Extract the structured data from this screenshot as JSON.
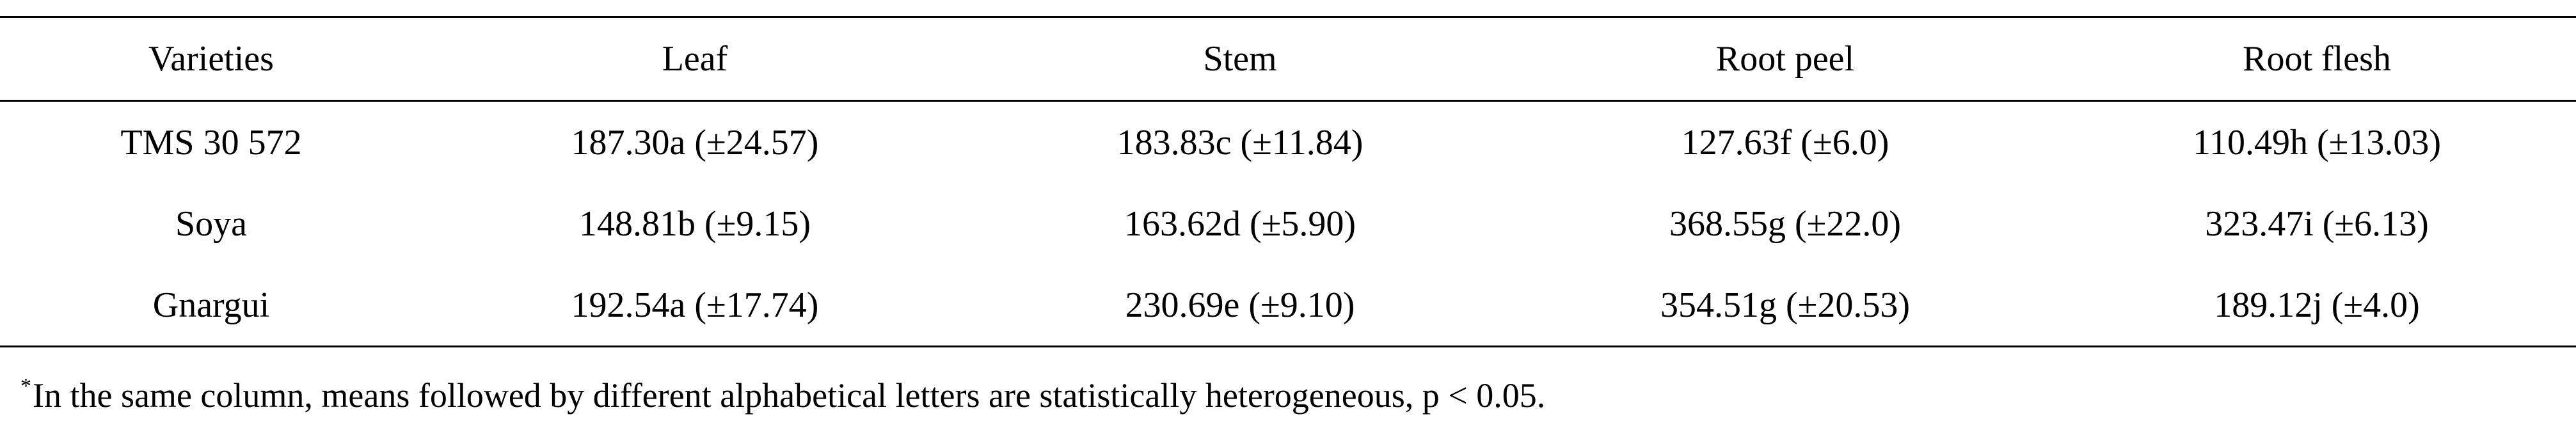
{
  "table": {
    "headers": [
      "Varieties",
      "Leaf",
      "Stem",
      "Root peel",
      "Root flesh"
    ],
    "rows": [
      [
        "TMS 30 572",
        "187.30a (±24.57)",
        "183.83c (±11.84)",
        "127.63f (±6.0)",
        "110.49h (±13.03)"
      ],
      [
        "Soya",
        "148.81b (±9.15)",
        "163.62d (±5.90)",
        "368.55g (±22.0)",
        "323.47i (±6.13)"
      ],
      [
        "Gnargui",
        "192.54a (±17.74)",
        "230.69e (±9.10)",
        "354.51g (±20.53)",
        "189.12j (±4.0)"
      ]
    ]
  },
  "footnote": {
    "marker": "*",
    "text": "In the same column, means followed by different alphabetical letters are statistically heterogeneous, p < 0.05."
  }
}
